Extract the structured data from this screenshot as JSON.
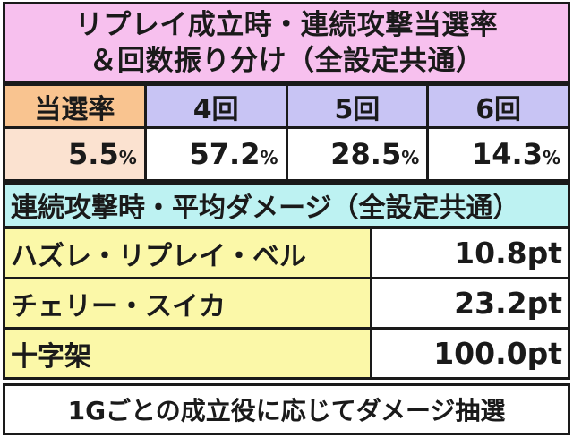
{
  "title": {
    "line1": "リプレイ成立時・連続攻撃当選率",
    "line2": "＆回数振り分け（全設定共通）"
  },
  "rate_table": {
    "label": "当選率",
    "columns": [
      "4回",
      "5回",
      "6回"
    ],
    "first_value": "5.5",
    "values": [
      "57.2",
      "28.5",
      "14.3"
    ],
    "unit": "%"
  },
  "damage": {
    "title": "連続攻撃時・平均ダメージ（全設定共通）",
    "rows": [
      {
        "name": "ハズレ・リプレイ・ベル",
        "value": "10.8pt"
      },
      {
        "name": "チェリー・スイカ",
        "value": "23.2pt"
      },
      {
        "name": "十字架",
        "value": "100.0pt"
      }
    ]
  },
  "footer": "1Gごとの成立役に応じてダメージ抽選",
  "colors": {
    "title_bg": "#f7c0ee",
    "label_bg": "#f9c490",
    "column_header_bg": "#c8c4f4",
    "first_value_bg": "#fbe2d0",
    "damage_title_bg": "#bdf2f2",
    "damage_name_bg": "#fbf8a8"
  }
}
